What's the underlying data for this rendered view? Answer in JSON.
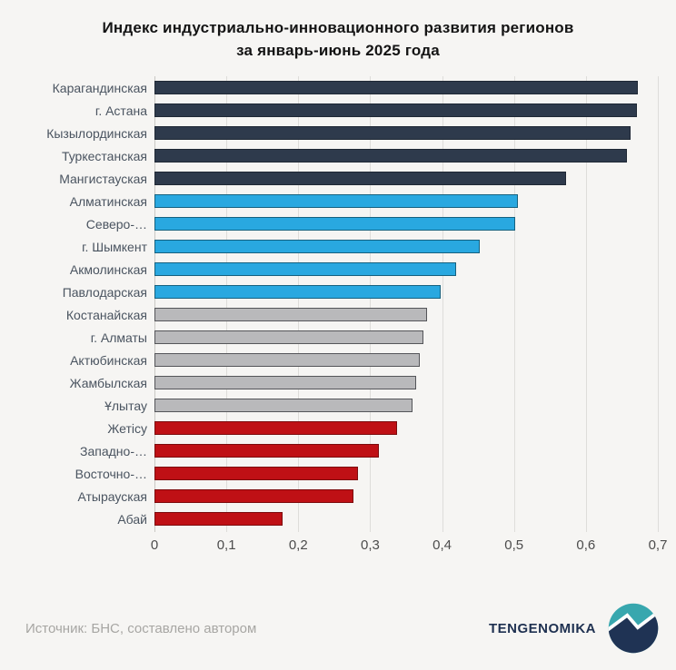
{
  "title": {
    "line1": "Индекс индустриально-инновационного развития регионов",
    "line2": "за январь-июнь 2025 года"
  },
  "chart_data": {
    "type": "bar",
    "orientation": "horizontal",
    "title": "Индекс индустриально-инновационного развития регионов за январь-июнь 2025 года",
    "xlim": [
      0,
      0.7
    ],
    "grid": true,
    "legend": false,
    "x_ticks": [
      {
        "value": 0,
        "label": "0"
      },
      {
        "value": 0.1,
        "label": "0,1"
      },
      {
        "value": 0.2,
        "label": "0,2"
      },
      {
        "value": 0.3,
        "label": "0,3"
      },
      {
        "value": 0.4,
        "label": "0,4"
      },
      {
        "value": 0.5,
        "label": "0,5"
      },
      {
        "value": 0.6,
        "label": "0,6"
      },
      {
        "value": 0.7,
        "label": "0,7"
      }
    ],
    "bars": [
      {
        "label": "Карагандинская",
        "value": 0.67,
        "group": "navy"
      },
      {
        "label": "г. Астана",
        "value": 0.668,
        "group": "navy"
      },
      {
        "label": "Кызылординская",
        "value": 0.66,
        "group": "navy"
      },
      {
        "label": "Туркестанская",
        "value": 0.655,
        "group": "navy"
      },
      {
        "label": "Мангистауская",
        "value": 0.57,
        "group": "navy"
      },
      {
        "label": "Алматинская",
        "value": 0.503,
        "group": "blue"
      },
      {
        "label": "Северо-…",
        "value": 0.499,
        "group": "blue"
      },
      {
        "label": "г. Шымкент",
        "value": 0.45,
        "group": "blue"
      },
      {
        "label": "Акмолинская",
        "value": 0.417,
        "group": "blue"
      },
      {
        "label": "Павлодарская",
        "value": 0.396,
        "group": "blue"
      },
      {
        "label": "Костанайская",
        "value": 0.377,
        "group": "gray"
      },
      {
        "label": "г. Алматы",
        "value": 0.371,
        "group": "gray"
      },
      {
        "label": "Актюбинская",
        "value": 0.366,
        "group": "gray"
      },
      {
        "label": "Жамбылская",
        "value": 0.362,
        "group": "gray"
      },
      {
        "label": "Ұлытау",
        "value": 0.356,
        "group": "gray"
      },
      {
        "label": "Жетісу",
        "value": 0.335,
        "group": "red"
      },
      {
        "label": "Западно-…",
        "value": 0.31,
        "group": "red"
      },
      {
        "label": "Восточно-…",
        "value": 0.28,
        "group": "red"
      },
      {
        "label": "Атырауская",
        "value": 0.274,
        "group": "red"
      },
      {
        "label": "Абай",
        "value": 0.176,
        "group": "red"
      }
    ],
    "groups": {
      "navy": {
        "fill": "#2e3a4c",
        "border": "#1f2835"
      },
      "blue": {
        "fill": "#29a8e0",
        "border": "#16617f"
      },
      "gray": {
        "fill": "#b9b9bb",
        "border": "#545559"
      },
      "red": {
        "fill": "#bf1015",
        "border": "#7c0b0d"
      }
    }
  },
  "footer": {
    "source": "Источник: БНС, составлено автором",
    "brand": "TENGENOMIKA"
  },
  "colors": {
    "background": "#f6f5f3",
    "gridline": "#deddda",
    "axis_line": "#c9c8c4",
    "title_text": "#141414",
    "label_text": "#4a5460",
    "axis_text": "#4c4c4c",
    "source_text": "#a7a6a3",
    "brand_text": "#1e3050",
    "logo_teal": "#38a7ae",
    "logo_navy": "#1f3354",
    "logo_band": "#ffffff"
  }
}
